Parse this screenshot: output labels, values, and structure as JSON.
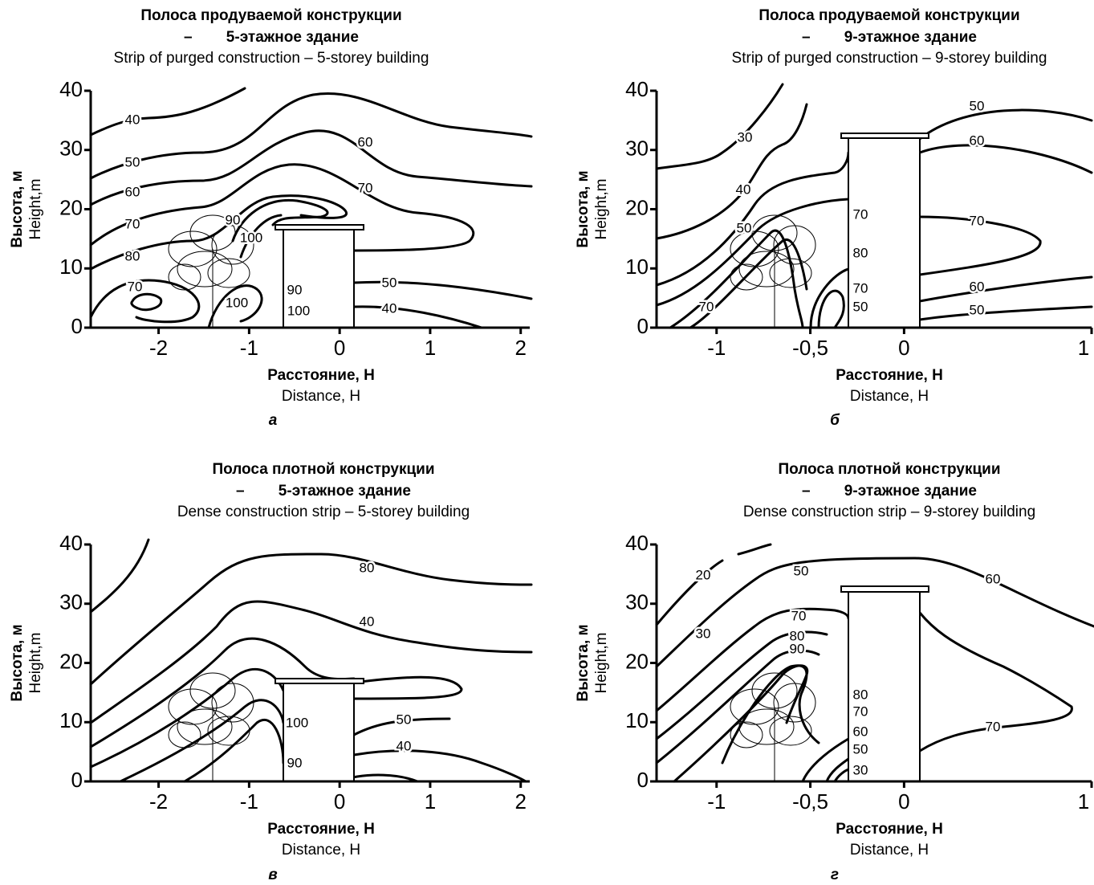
{
  "chart_data": [
    {
      "type": "contour",
      "title": "Полоса продуваемой конструкции",
      "subtitle": "–        5-этажное здание",
      "title_en": "Strip of purged construction – 5-storey building",
      "ylabel": "Высота, м",
      "ylabel_en": "Height,m",
      "xlabel": "Расстояние, H",
      "xlabel_en": "Distance, H",
      "panel_label": "а",
      "xlim": [
        -2.75,
        2.1
      ],
      "ylim": [
        0,
        40
      ],
      "xticks": [
        -2,
        -1,
        0,
        1,
        2
      ],
      "yticks": [
        0,
        10,
        20,
        30,
        40
      ],
      "contour_levels": [
        40,
        50,
        60,
        70,
        80,
        70,
        90,
        100,
        100,
        90,
        100,
        60,
        70,
        50,
        40
      ]
    },
    {
      "type": "contour",
      "title": "Полоса продуваемой конструкции",
      "subtitle": "–        9-этажное здание",
      "title_en": "Strip of purged construction – 9-storey building",
      "ylabel": "Высота, м",
      "ylabel_en": "Height,m",
      "xlabel": "Расстояние, H",
      "xlabel_en": "Distance, H",
      "panel_label": "б",
      "xlim": [
        -1.32,
        1.0
      ],
      "ylim": [
        0,
        40
      ],
      "xticks": [
        -1,
        {
          "value": -0.5,
          "label": "-0,5"
        },
        0,
        1
      ],
      "yticks": [
        0,
        10,
        20,
        30,
        40
      ],
      "contour_levels": [
        30,
        40,
        50,
        70,
        70,
        80,
        70,
        50,
        50,
        60,
        70,
        60,
        50
      ]
    },
    {
      "type": "contour",
      "title": "Полоса плотной конструкции",
      "subtitle": "–        5-этажное здание",
      "title_en": "Dense construction strip – 5-storey building",
      "ylabel": "Высота, м",
      "ylabel_en": "Height,m",
      "xlabel": "Расстояние, H",
      "xlabel_en": "Distance, H",
      "panel_label": "в",
      "xlim": [
        -2.75,
        2.1
      ],
      "ylim": [
        0,
        40
      ],
      "xticks": [
        -2,
        -1,
        0,
        1,
        2
      ],
      "yticks": [
        0,
        10,
        20,
        30,
        40
      ],
      "contour_levels": [
        80,
        40,
        100,
        90,
        50,
        40
      ]
    },
    {
      "type": "contour",
      "title": "Полоса плотной конструкции",
      "subtitle": "–        9-этажное здание",
      "title_en": "Dense construction strip – 9-storey building",
      "ylabel": "Высота, м",
      "ylabel_en": "Height,m",
      "xlabel": "Расстояние, H",
      "xlabel_en": "Distance, H",
      "panel_label": "г",
      "xlim": [
        -1.32,
        1.0
      ],
      "ylim": [
        0,
        40
      ],
      "xticks": [
        -1,
        {
          "value": -0.5,
          "label": "-0,5"
        },
        0,
        1
      ],
      "yticks": [
        0,
        10,
        20,
        30,
        40
      ],
      "contour_levels": [
        20,
        50,
        60,
        30,
        70,
        80,
        90,
        80,
        70,
        60,
        50,
        30,
        70
      ]
    }
  ]
}
